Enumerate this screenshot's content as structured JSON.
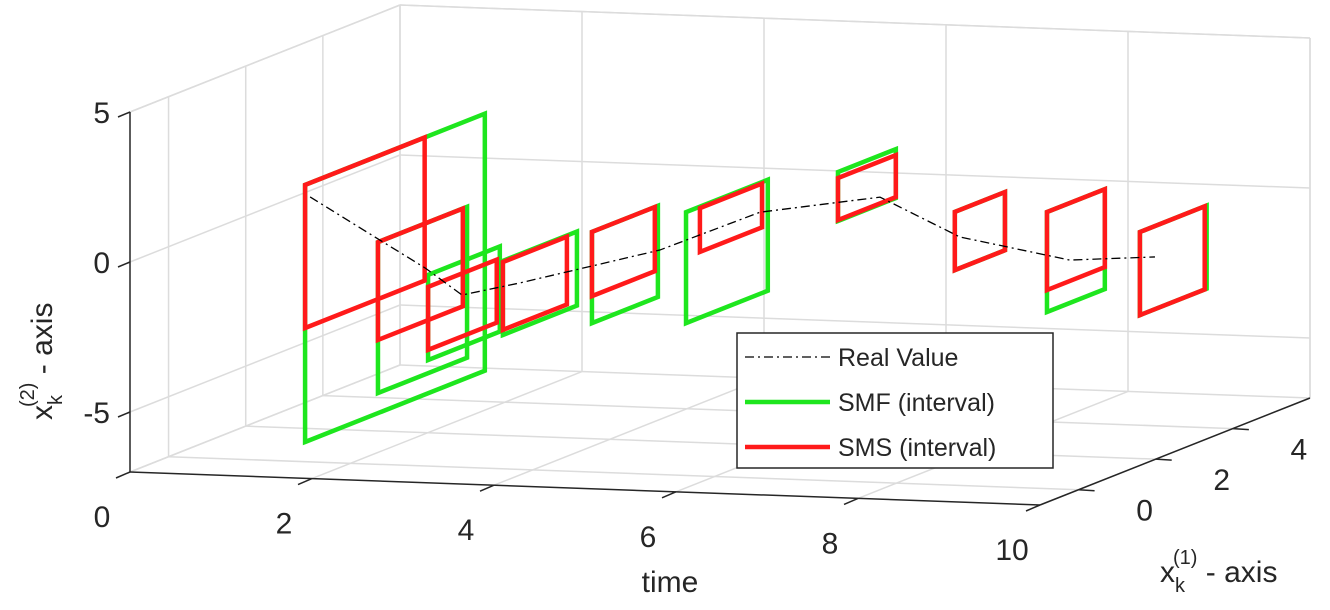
{
  "chart_data": {
    "type": "interval3d",
    "xlabel": "time",
    "ylabel": {
      "base": "x",
      "sub": "k",
      "sup": "(1)",
      "rest": " - axis"
    },
    "zlabel": {
      "base": "x",
      "sub": "k",
      "sup": "(2)",
      "rest": " - axis"
    },
    "xlim": [
      0,
      10
    ],
    "xticks": [
      0,
      2,
      4,
      6,
      8,
      10
    ],
    "ylim": [
      -1,
      6
    ],
    "yticks": [
      0,
      2,
      4
    ],
    "zlim": [
      -7,
      5
    ],
    "zticks": [
      -5,
      0,
      5
    ],
    "grid": true,
    "series": [
      {
        "name": "Real Value",
        "color": "#000000",
        "style": "dashdot",
        "t": [
          1,
          2,
          3,
          4,
          5,
          6,
          7,
          8,
          9,
          10
        ],
        "x1": [
          1.31,
          1.93,
          0.53,
          -0.33,
          0.94,
          1.18,
          1.93,
          1.64,
          2.13,
          1.98
        ],
        "x2": [
          1.1,
          -1.47,
          -1.55,
          -0.6,
          -0.04,
          1.21,
          1.44,
          0.37,
          -0.54,
          -0.25
        ]
      },
      {
        "name": "SMF (interval)",
        "color": "#1ee61e",
        "t": [
          1,
          2,
          3,
          4,
          5,
          6,
          7,
          8,
          9,
          10
        ],
        "x1_lower": [
          1.18,
          0.71,
          -0.35,
          -0.77,
          -0.82,
          -0.74,
          0.84,
          1.51,
          1.54,
          1.59
        ],
        "x1_upper": [
          5.84,
          3.02,
          1.51,
          1.15,
          0.89,
          1.38,
          2.34,
          2.81,
          3.04,
          3.32
        ],
        "x2_lower": [
          -7.0,
          -5.02,
          -3.27,
          -2.11,
          -1.58,
          -1.51,
          1.2,
          -0.67,
          -1.97,
          -1.99
        ],
        "x2_upper": [
          1.57,
          0.01,
          -0.43,
          0.36,
          1.46,
          2.19,
          2.83,
          1.27,
          1.36,
          0.78
        ]
      },
      {
        "name": "SMS (interval)",
        "color": "#ff1a1a",
        "t": [
          1,
          2,
          3,
          4,
          5,
          6,
          7,
          8,
          9,
          10
        ],
        "x1_lower": [
          1.18,
          0.71,
          -0.35,
          -0.77,
          -0.82,
          -0.38,
          0.84,
          1.51,
          1.54,
          1.59
        ],
        "x1_upper": [
          4.28,
          2.91,
          1.43,
          0.89,
          0.81,
          1.23,
          2.34,
          2.81,
          3.04,
          3.27
        ],
        "x2_lower": [
          -3.2,
          -3.25,
          -2.93,
          -1.94,
          -0.68,
          0.68,
          1.23,
          -0.67,
          -1.24,
          -1.99
        ],
        "x2_upper": [
          1.57,
          0.01,
          -0.83,
          0.32,
          1.46,
          2.14,
          2.63,
          1.27,
          1.36,
          0.78
        ]
      }
    ]
  }
}
